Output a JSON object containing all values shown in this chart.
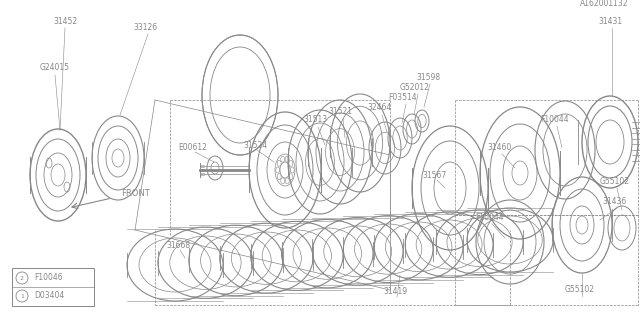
{
  "bg_color": "#ffffff",
  "line_color": "#888888",
  "text_color": "#888888",
  "diagram_id": "A162001132",
  "legend": [
    {
      "symbol": "1",
      "label": "D03404"
    },
    {
      "symbol": "2",
      "label": "F10046"
    }
  ]
}
